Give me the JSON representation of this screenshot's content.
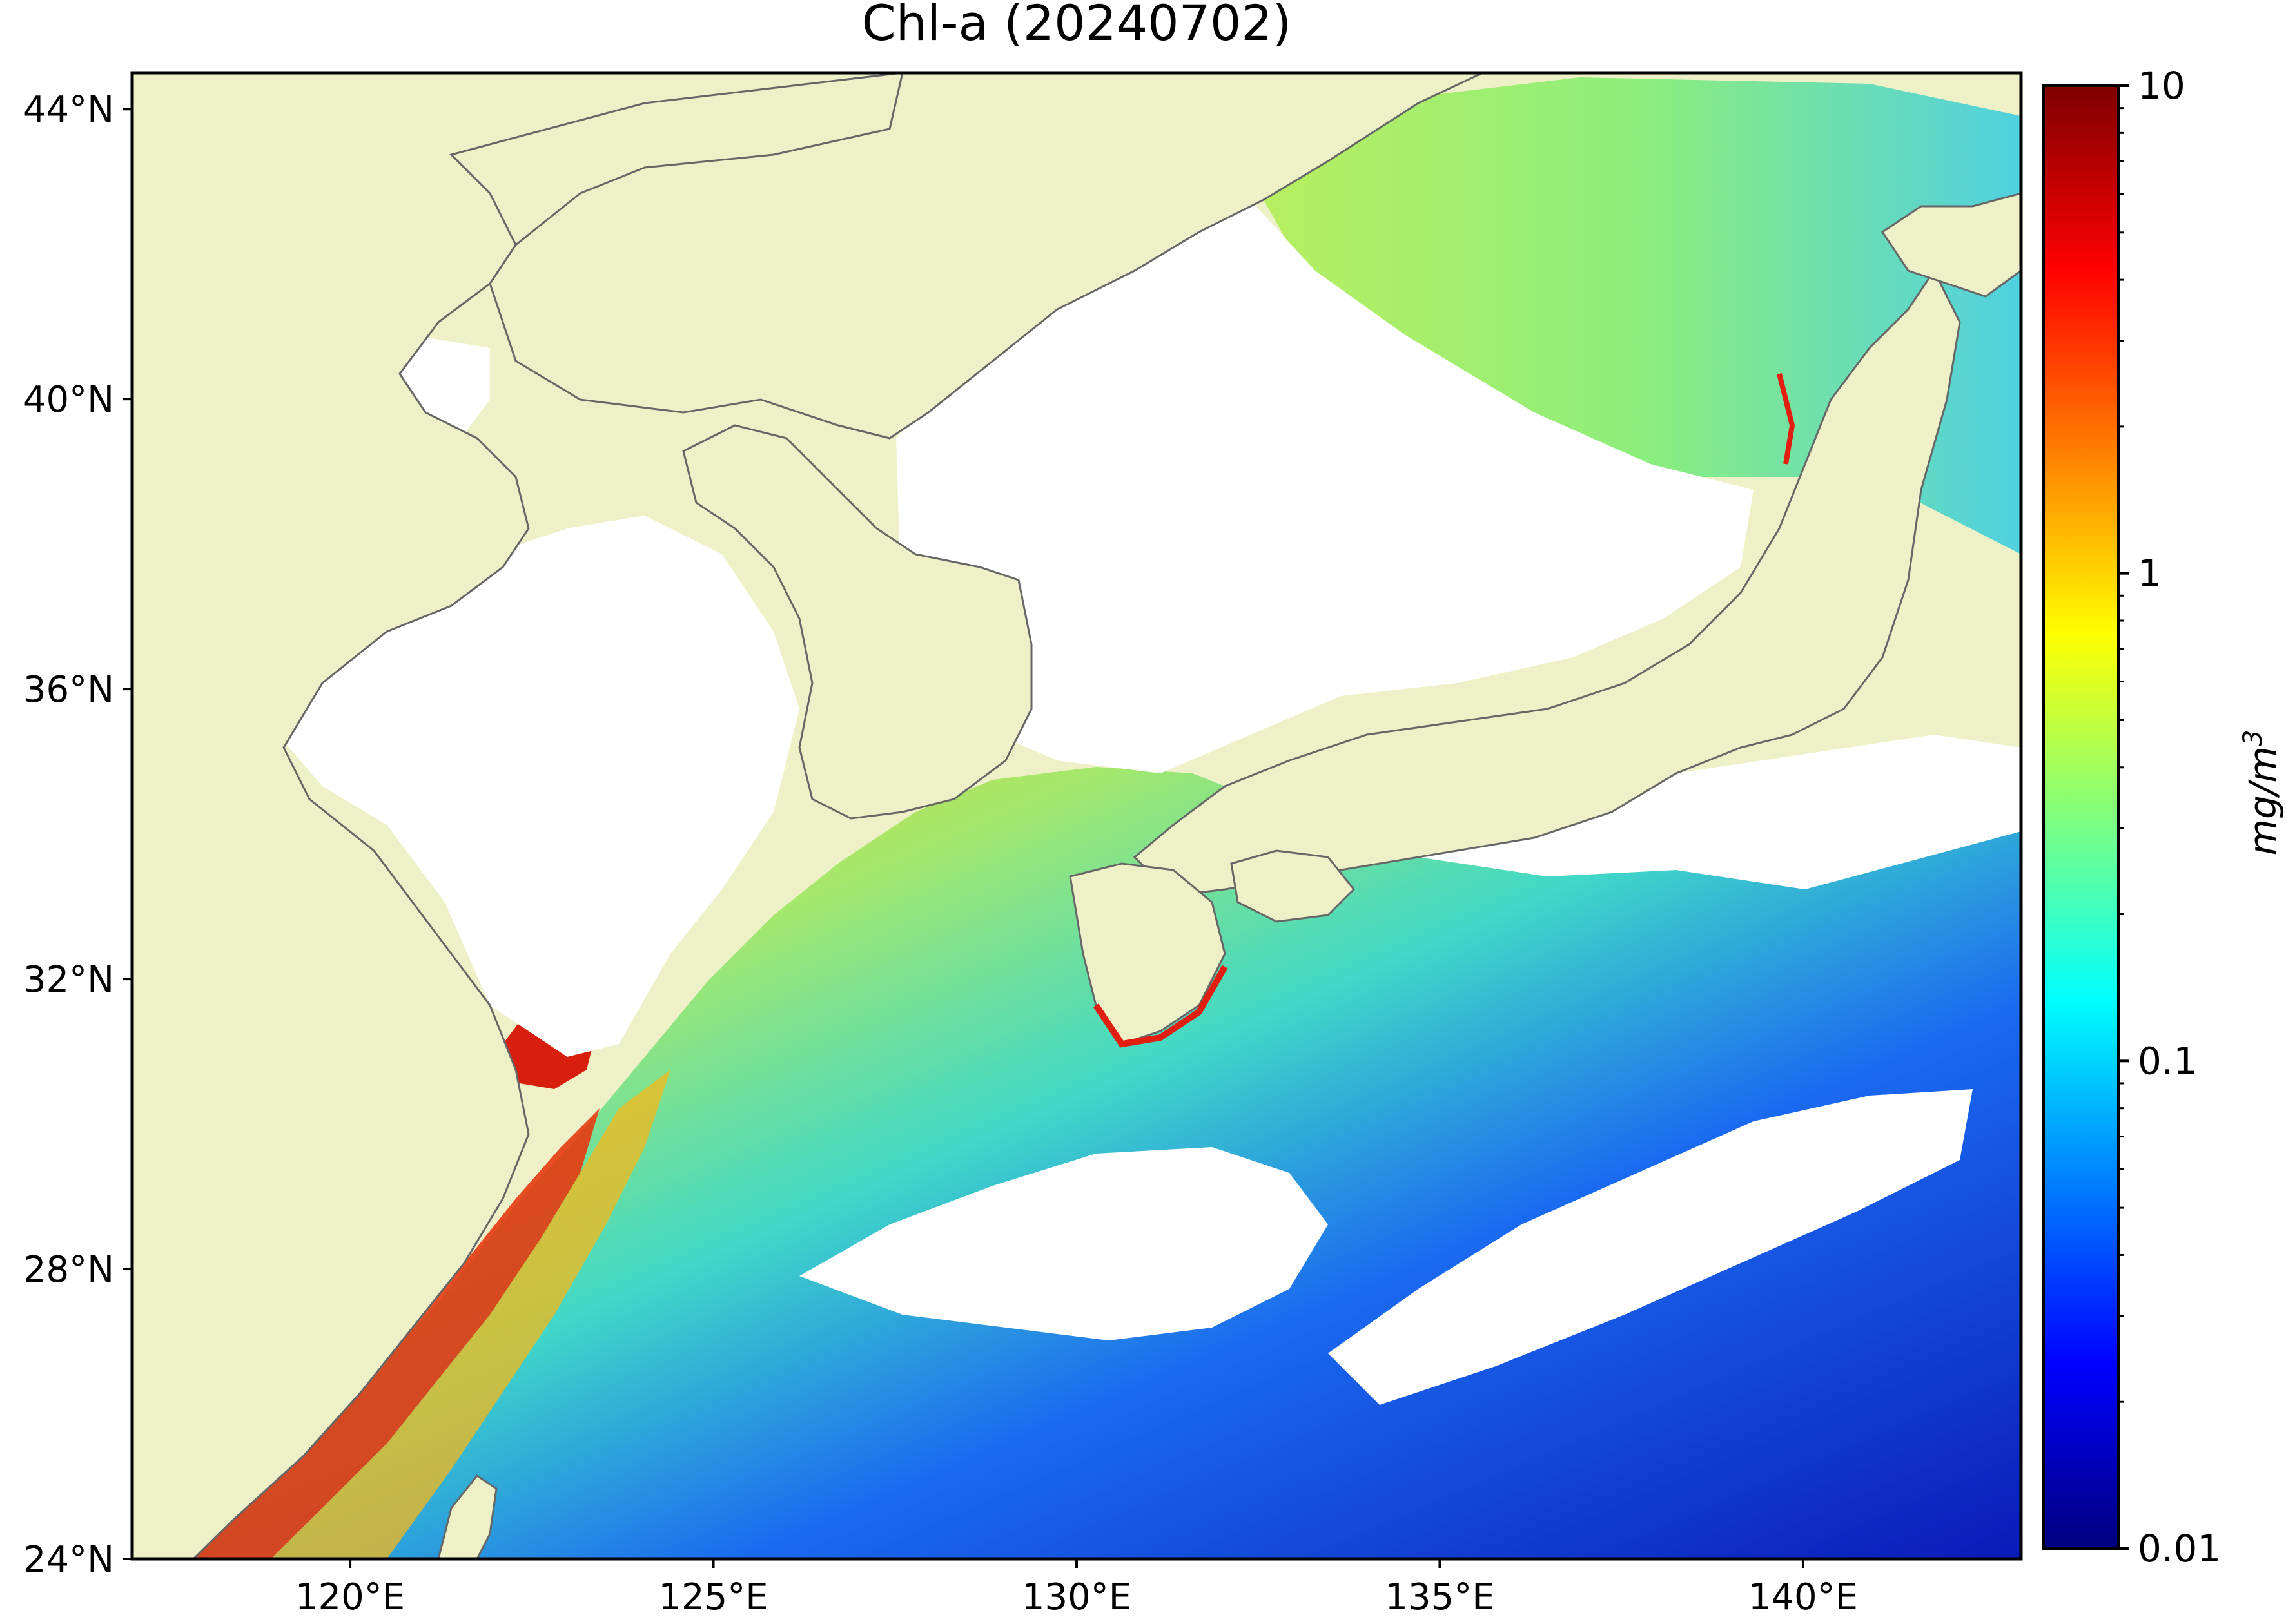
{
  "title": "Chl-a (20240702)",
  "map": {
    "land_color": "#eef1c8",
    "cloud_color": "#ffffff",
    "coast_color": "#666666",
    "frame_color": "#000000",
    "extent": {
      "lon": [
        117,
        143
      ],
      "lat": [
        24,
        44.5
      ]
    },
    "lat_ticks": [
      {
        "value": 44,
        "label": "44°N"
      },
      {
        "value": 40,
        "label": "40°N"
      },
      {
        "value": 36,
        "label": "36°N"
      },
      {
        "value": 32,
        "label": "32°N"
      },
      {
        "value": 28,
        "label": "28°N"
      },
      {
        "value": 24,
        "label": "24°N"
      }
    ],
    "lon_ticks": [
      {
        "value": 120,
        "label": "120°E"
      },
      {
        "value": 125,
        "label": "125°E"
      },
      {
        "value": 130,
        "label": "130°E"
      },
      {
        "value": 135,
        "label": "135°E"
      },
      {
        "value": 140,
        "label": "140°E"
      }
    ]
  },
  "colorbar": {
    "colormap": "jet",
    "scale": "log",
    "min": 0.01,
    "max": 10,
    "label_text": "mg/m",
    "label_sup": "3",
    "ticks": [
      {
        "value": 10,
        "label": "10"
      },
      {
        "value": 1,
        "label": "1"
      },
      {
        "value": 0.1,
        "label": "0.1"
      },
      {
        "value": 0.01,
        "label": "0.01"
      }
    ],
    "stops": [
      "#00007f",
      "#0000ff",
      "#007fff",
      "#00ffff",
      "#7fff7f",
      "#ffff00",
      "#ff7f00",
      "#ff0000",
      "#7f0000"
    ]
  }
}
